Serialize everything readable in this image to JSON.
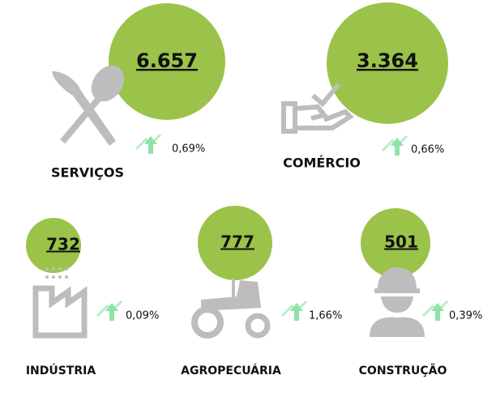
{
  "sectors": [
    {
      "name": "SERVIÇOS",
      "value": "6.657",
      "change": "0,69%"
    },
    {
      "name": "COMÉRCIO",
      "value": "3.364",
      "change": "0,66%"
    },
    {
      "name": "INDÚSTRIA",
      "value": "732",
      "change": "0,09%"
    },
    {
      "name": "AGROPECUÁRIA",
      "value": "777",
      "change": "1,66%"
    },
    {
      "name": "CONSTRUÇÃO",
      "value": "501",
      "change": "0,39%"
    }
  ]
}
